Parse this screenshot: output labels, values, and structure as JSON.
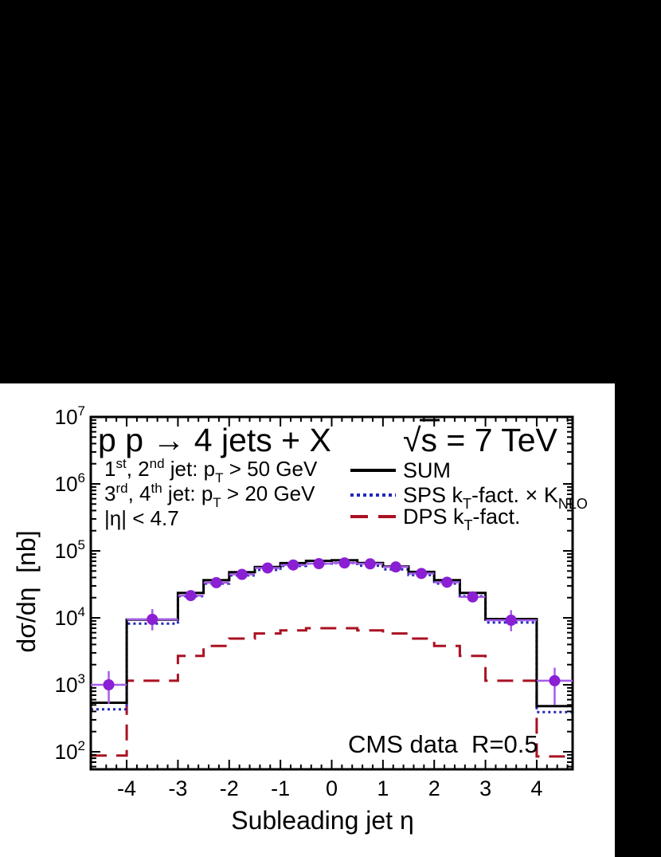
{
  "page": {
    "background": "#000000",
    "panel_background": "#ffffff"
  },
  "titles": {
    "process": "p p → 4 jets + X",
    "energy": {
      "radical": "√",
      "s": "s",
      "rest": " = 7 TeV"
    },
    "cuts_line1": {
      "n1": "1",
      "s1": "st",
      "n2": ", 2",
      "s2": "nd",
      "mid": " jet: p",
      "sub": "T",
      "rest": " > 50 GeV"
    },
    "cuts_line2": {
      "n1": "3",
      "s1": "rd",
      "n2": ", 4",
      "s2": "th",
      "mid": " jet: p",
      "sub": "T",
      "rest": " > 20 GeV"
    },
    "cuts_line3": "|η| < 4.7",
    "annotation": "CMS data  R=0.5",
    "y_axis_title": "dσ/dη  [nb]",
    "x_axis_title": "Subleading jet η"
  },
  "legend": {
    "items": [
      {
        "parts": {
          "p1": "SUM"
        },
        "color": "#000000"
      },
      {
        "parts": {
          "p1": "SPS k",
          "sub1": "T",
          "p2": "-fact. × K",
          "sub2": "NLO"
        },
        "color": "#2328b8"
      },
      {
        "parts": {
          "p1": "DPS k",
          "sub1": "T",
          "p2": "-fact."
        },
        "color": "#aa1122"
      }
    ]
  },
  "chart_data": {
    "type": "line",
    "title": "p p → 4 jets + X",
    "subtitle": "√s = 7 TeV",
    "xlabel": "Subleading jet η",
    "ylabel": "dσ/dη [nb]",
    "x_range": [
      -4.7,
      4.7
    ],
    "y_range": [
      54.7,
      10000000
    ],
    "y_scale": "log",
    "grid": false,
    "legend_position": "top-right-inside",
    "x_major_ticks": [
      -4,
      -3,
      -2,
      -1,
      0,
      1,
      2,
      3,
      4
    ],
    "x_minor_step": 0.2,
    "y_major_exponents": [
      2,
      3,
      4,
      5,
      6,
      7
    ],
    "bin_edges": [
      -4.7,
      -4,
      -3,
      -2.5,
      -2,
      -1.5,
      -1,
      -0.5,
      0,
      0.5,
      1,
      1.5,
      2,
      2.5,
      3,
      4,
      4.7
    ],
    "series": [
      {
        "name": "SUM",
        "color": "#000000",
        "dash": "",
        "width": 3,
        "values": [
          540,
          9400,
          23500,
          36500,
          48000,
          57500,
          65500,
          71000,
          72500,
          66000,
          58500,
          48500,
          36500,
          23500,
          9600,
          480
        ]
      },
      {
        "name": "SPS kT-fact. × KNLO",
        "color": "#2328b8",
        "dash": "3 4",
        "width": 3,
        "values": [
          430,
          8200,
          21000,
          32500,
          43000,
          52000,
          59500,
          64500,
          66000,
          60000,
          53000,
          43500,
          32500,
          21000,
          8500,
          390
        ]
      },
      {
        "name": "DPS kT-fact.",
        "color": "#aa1122",
        "dash": "20 12",
        "width": 3,
        "values": [
          88,
          1150,
          2700,
          3800,
          4900,
          5850,
          6500,
          7000,
          7000,
          6500,
          5850,
          4900,
          3800,
          2700,
          1150,
          85
        ]
      }
    ],
    "data_points": {
      "name": "CMS data R=0.5",
      "marker_color": "#8a1fd4",
      "bar_color": "#a45ce8",
      "marker_radius": 7,
      "points": [
        {
          "x": -4.35,
          "y": 1000,
          "ylo": 520,
          "yhi": 1600
        },
        {
          "x": -3.5,
          "y": 9500,
          "ylo": 6500,
          "yhi": 13500
        },
        {
          "x": -2.75,
          "y": 21500,
          "ylo": 18500,
          "yhi": 25000
        },
        {
          "x": -2.25,
          "y": 33500,
          "ylo": 30000,
          "yhi": 37500
        },
        {
          "x": -1.75,
          "y": 44500,
          "ylo": 40500,
          "yhi": 49000
        },
        {
          "x": -1.25,
          "y": 55500,
          "ylo": 51000,
          "yhi": 60500
        },
        {
          "x": -0.75,
          "y": 61500,
          "ylo": 57000,
          "yhi": 66500
        },
        {
          "x": -0.25,
          "y": 64500,
          "ylo": 60000,
          "yhi": 69500
        },
        {
          "x": 0.25,
          "y": 66000,
          "ylo": 61500,
          "yhi": 71000
        },
        {
          "x": 0.75,
          "y": 64000,
          "ylo": 59500,
          "yhi": 69000
        },
        {
          "x": 1.25,
          "y": 57500,
          "ylo": 53000,
          "yhi": 62500
        },
        {
          "x": 1.75,
          "y": 46000,
          "ylo": 42000,
          "yhi": 50500
        },
        {
          "x": 2.25,
          "y": 34000,
          "ylo": 30500,
          "yhi": 38000
        },
        {
          "x": 2.75,
          "y": 20500,
          "ylo": 17500,
          "yhi": 24000
        },
        {
          "x": 3.5,
          "y": 9200,
          "ylo": 6300,
          "yhi": 13000
        },
        {
          "x": 4.35,
          "y": 1150,
          "ylo": 500,
          "yhi": 1800
        }
      ]
    }
  }
}
